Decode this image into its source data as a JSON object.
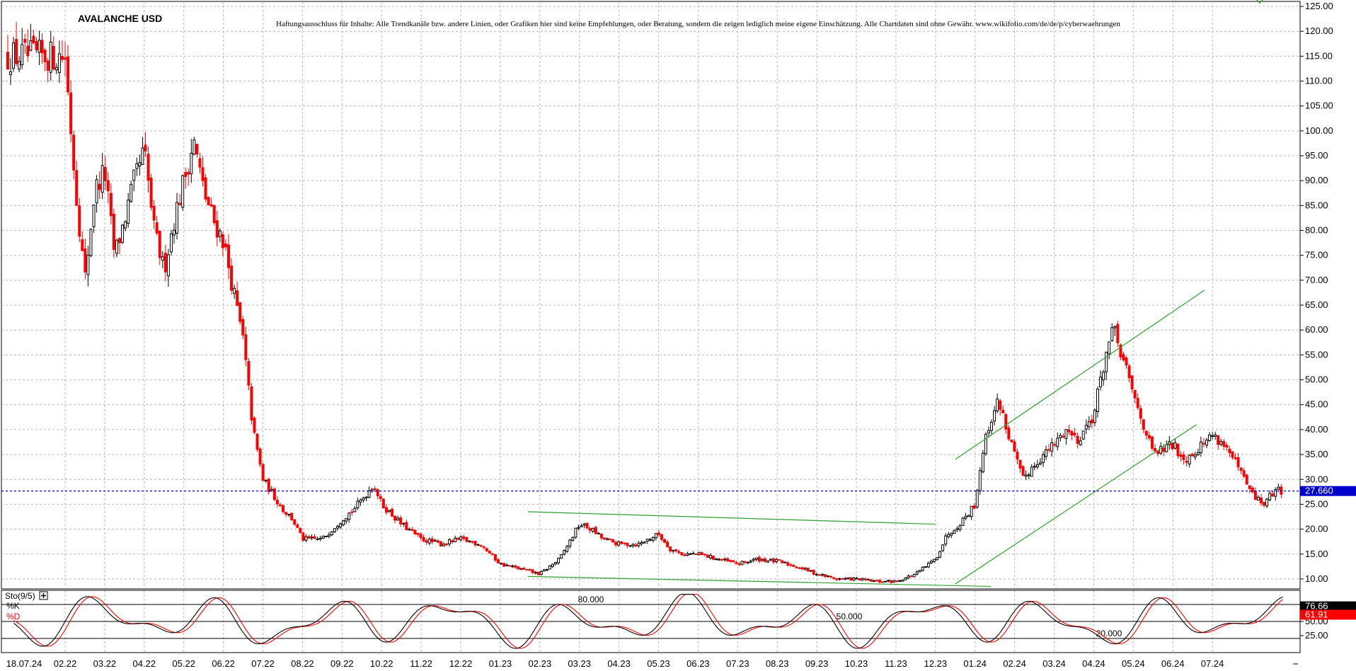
{
  "chart_data": [
    {
      "type": "candlestick",
      "title": "AVALANCHE USD",
      "disclaimer": "Haftungsausschluss für Inhalte: Alle Trendkanäle bzw. andere Linien, oder Grafiken hier sind keine Empfehlungen, oder Beratung, sondern die zeigen lediglich meine eigene Einschätzung. Alle Chartdaten sind ohne Gewähr. www.wikifolio.com/de/de/p/cyberwaehrungen",
      "y_range": [
        8,
        126
      ],
      "y_ticks": [
        "125.00",
        "120.00",
        "115.00",
        "110.00",
        "105.00",
        "100.00",
        "95.00",
        "90.00",
        "85.00",
        "80.00",
        "75.00",
        "70.00",
        "65.00",
        "60.00",
        "55.00",
        "50.00",
        "45.00",
        "40.00",
        "35.00",
        "30.00",
        "25.00",
        "20.00",
        "15.00",
        "10.00"
      ],
      "x_ticks": [
        "18.07.24",
        "02.22",
        "03.22",
        "04.22",
        "05.22",
        "06.22",
        "07.22",
        "08.22",
        "09.22",
        "10.22",
        "11.22",
        "12.22",
        "01.23",
        "02.23",
        "03.23",
        "04.23",
        "05.23",
        "06.23",
        "07.23",
        "08.23",
        "09.23",
        "10.23",
        "11.23",
        "12.23",
        "01.24",
        "02.24",
        "03.24",
        "04.24",
        "05.24",
        "06.24",
        "07.24"
      ],
      "last_price": "27.660",
      "last_price_value": 27.66,
      "grid": true,
      "colors": {
        "up": "#000000",
        "down": "#ff0000",
        "trendline": "#2ea02e",
        "last_price_line": "#0000cc",
        "last_price_label_bg": "#0000cc"
      },
      "close_path": [
        [
          0,
          115
        ],
        [
          0.25,
          90
        ],
        [
          0.5,
          70
        ],
        [
          0.75,
          88
        ],
        [
          1,
          92
        ],
        [
          1.25,
          75
        ],
        [
          1.5,
          82
        ],
        [
          1.75,
          90
        ],
        [
          2,
          96
        ],
        [
          2.25,
          80
        ],
        [
          2.5,
          72
        ],
        [
          2.75,
          82
        ],
        [
          3,
          90
        ],
        [
          3.25,
          98
        ],
        [
          3.5,
          88
        ],
        [
          3.75,
          82
        ],
        [
          4,
          78
        ],
        [
          4.25,
          68
        ],
        [
          4.5,
          58
        ],
        [
          4.75,
          40
        ],
        [
          5,
          30
        ],
        [
          5.25,
          27
        ],
        [
          5.5,
          24
        ],
        [
          5.75,
          22
        ],
        [
          6,
          18
        ],
        [
          6.5,
          18
        ],
        [
          7,
          22
        ],
        [
          7.3,
          24
        ],
        [
          7.6,
          27
        ],
        [
          7.8,
          29
        ],
        [
          8,
          25
        ],
        [
          8.5,
          21
        ],
        [
          9,
          18
        ],
        [
          9.5,
          17
        ],
        [
          10,
          18
        ],
        [
          10.5,
          17
        ],
        [
          11,
          13
        ],
        [
          11.5,
          12
        ],
        [
          12,
          11
        ],
        [
          12.5,
          14
        ],
        [
          13,
          21
        ],
        [
          13.3,
          20
        ],
        [
          13.6,
          18
        ],
        [
          14,
          17
        ],
        [
          14.5,
          17
        ],
        [
          15,
          19
        ],
        [
          15.3,
          16
        ],
        [
          15.6,
          15
        ],
        [
          16,
          15
        ],
        [
          16.5,
          14
        ],
        [
          17,
          13
        ],
        [
          17.5,
          14
        ],
        [
          18,
          13.5
        ],
        [
          18.5,
          12.5
        ],
        [
          19,
          11
        ],
        [
          19.5,
          10
        ],
        [
          20,
          10
        ],
        [
          20.5,
          9.5
        ],
        [
          21,
          9.5
        ],
        [
          21.5,
          11
        ],
        [
          22,
          14
        ],
        [
          22.3,
          19
        ],
        [
          22.6,
          21
        ],
        [
          23,
          25
        ],
        [
          23.2,
          36
        ],
        [
          23.4,
          42
        ],
        [
          23.6,
          46
        ],
        [
          23.8,
          40
        ],
        [
          24,
          35
        ],
        [
          24.2,
          30
        ],
        [
          24.5,
          33
        ],
        [
          25,
          37
        ],
        [
          25.3,
          40
        ],
        [
          25.6,
          38
        ],
        [
          26,
          43
        ],
        [
          26.3,
          55
        ],
        [
          26.5,
          60
        ],
        [
          26.7,
          55
        ],
        [
          27,
          47
        ],
        [
          27.3,
          40
        ],
        [
          27.5,
          35
        ],
        [
          28,
          37
        ],
        [
          28.3,
          34
        ],
        [
          28.6,
          36
        ],
        [
          29,
          39
        ],
        [
          29.3,
          37
        ],
        [
          29.6,
          33
        ],
        [
          30,
          27
        ],
        [
          30.3,
          25
        ],
        [
          30.6,
          28
        ],
        [
          30.8,
          27.66
        ]
      ],
      "trendlines": [
        {
          "from": [
            11.7,
            23.5
          ],
          "to": [
            22,
            21
          ]
        },
        {
          "from": [
            11.7,
            10.5
          ],
          "to": [
            23.4,
            8.5
          ]
        },
        {
          "from": [
            22.5,
            34
          ],
          "to": [
            28.8,
            68
          ]
        },
        {
          "from": [
            22.5,
            9
          ],
          "to": [
            28.6,
            41
          ]
        }
      ]
    },
    {
      "type": "line",
      "title": "Sto(9/5)",
      "y_range": [
        0,
        100
      ],
      "series": [
        {
          "name": "%K",
          "last": "76.66",
          "color": "#000000"
        },
        {
          "name": "%D",
          "last": "61.91",
          "color": "#ff0000"
        }
      ],
      "levels": [
        {
          "label": "80.000",
          "value": 80
        },
        {
          "label": "50.000",
          "value": 50
        },
        {
          "label": "20.000",
          "value": 20
        }
      ],
      "y_ticks": [
        "75.00",
        "50.00",
        "25.00"
      ]
    }
  ]
}
